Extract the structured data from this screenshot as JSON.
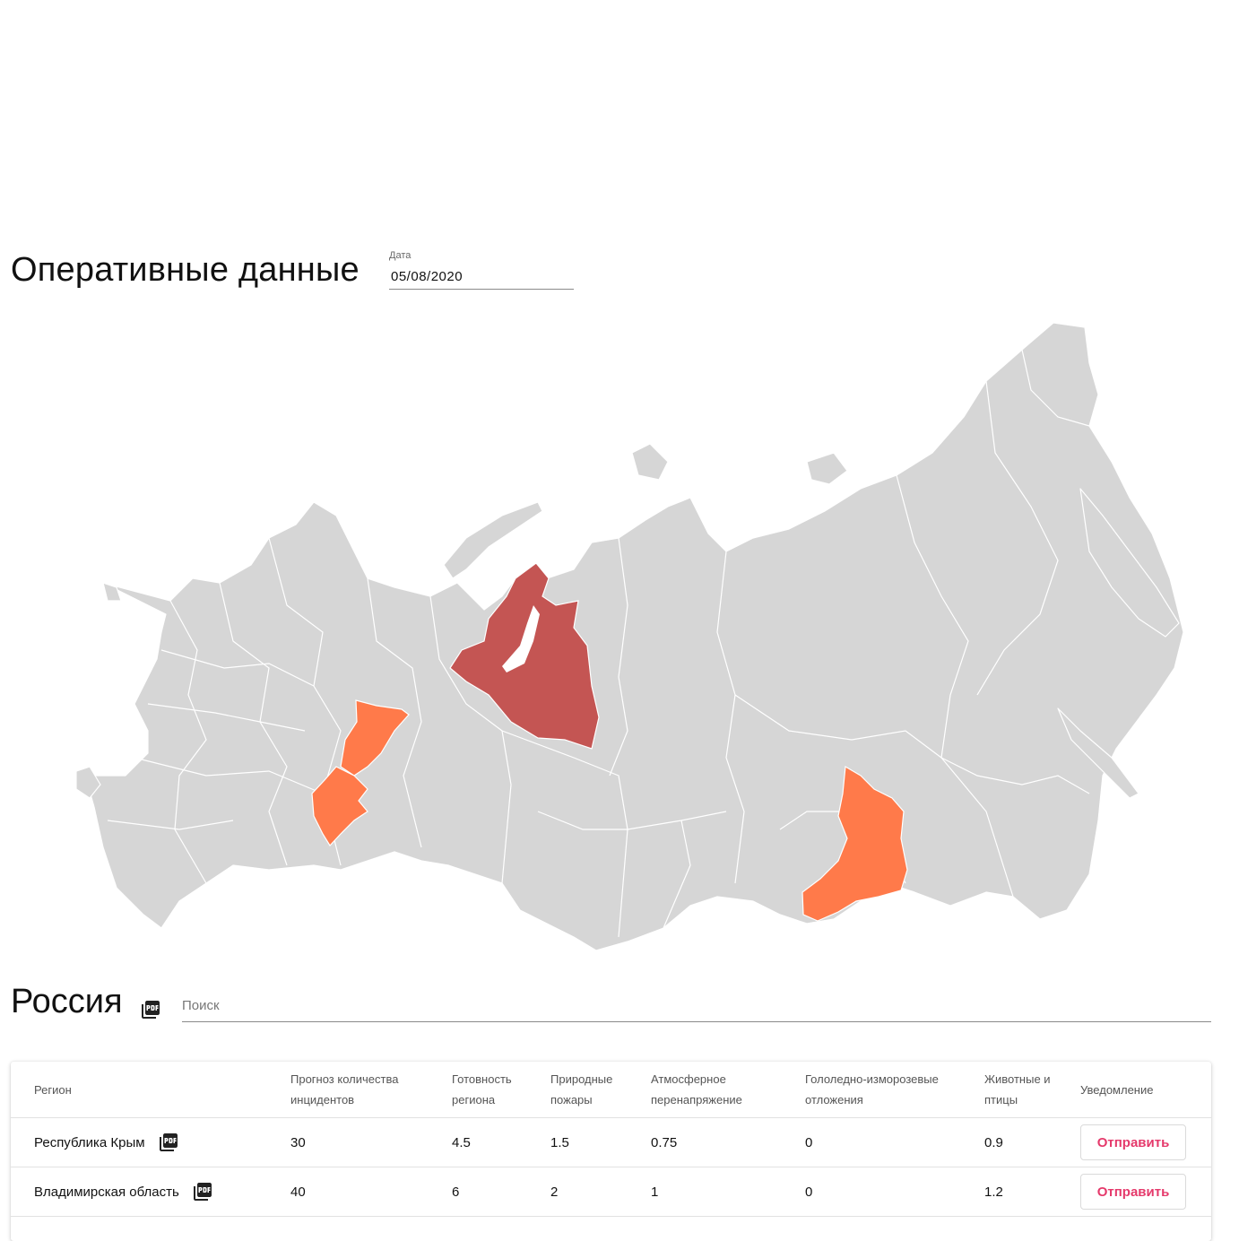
{
  "header": {
    "title": "Оперативные данные"
  },
  "date_field": {
    "label": "Дата",
    "value": "05/08/2020"
  },
  "map": {
    "base_color": "#d6d6d6",
    "border_color": "#ffffff",
    "highlight_colors": {
      "high": "#c45553",
      "medium": "#ff7a4a"
    }
  },
  "region_section": {
    "title": "Россия",
    "pdf_icon": "pdf-icon",
    "search_placeholder": "Поиск"
  },
  "table": {
    "columns": [
      "Регион",
      "Прогноз количества инцидентов",
      "Готовность региона",
      "Природные пожары",
      "Атмосферное перенапряжение",
      "Гололедно-изморозевые отложения",
      "Животные и птицы",
      "Уведомление"
    ],
    "rows": [
      {
        "region": "Республика Крым",
        "forecast": "30",
        "readiness": "4.5",
        "fires": "1.5",
        "atmospheric": "0.75",
        "icing": "0",
        "animals": "0.9",
        "action": "Отправить"
      },
      {
        "region": "Владимирская область",
        "forecast": "40",
        "readiness": "6",
        "fires": "2",
        "atmospheric": "1",
        "icing": "0",
        "animals": "1.2",
        "action": "Отправить"
      }
    ]
  }
}
